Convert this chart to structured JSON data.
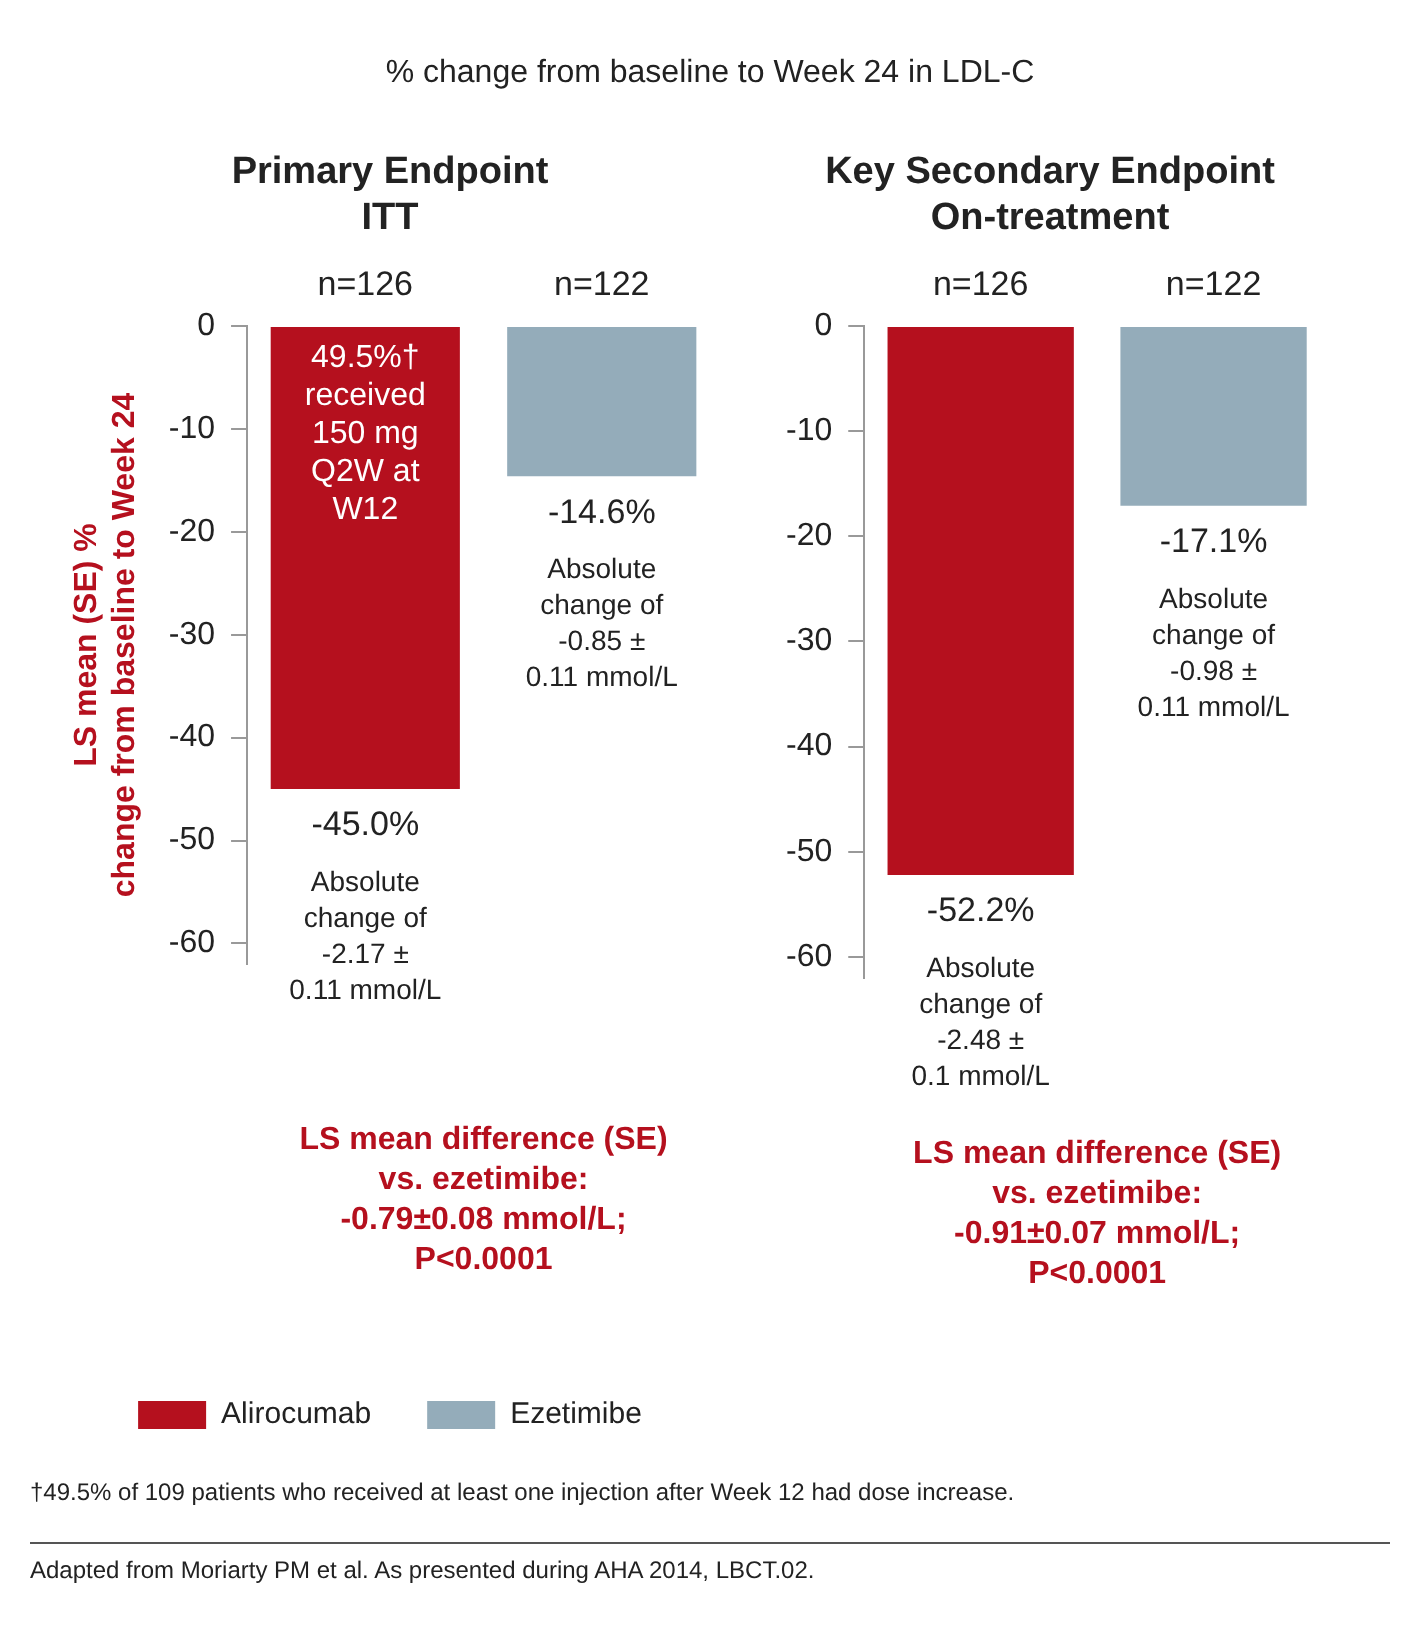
{
  "chart_data": [
    {
      "type": "other",
      "title": "% change from baseline to Week 24 in LDL-C"
    },
    {
      "type": "bar",
      "title": "Primary Endpoint\nITT",
      "ylabel": "LS mean (SE) %\nchange from baseline to Week 24",
      "categories": [
        "n=126",
        "n=122"
      ],
      "stacked": true,
      "series": [
        {
          "name": "Alirocumab",
          "color": "#b5101e",
          "values": [
            -45.0,
            null
          ],
          "value_labels": [
            "-45.0%",
            null
          ]
        },
        {
          "name": "Ezetimibe",
          "color": "#94acba",
          "values": [
            null,
            -14.6
          ],
          "value_labels": [
            null,
            "-14.6%"
          ]
        }
      ],
      "ylim": [
        -62,
        0
      ],
      "yticks": [
        0,
        -10,
        -20,
        -30,
        -40,
        -50,
        -60
      ],
      "grid": false,
      "legend": "bottom",
      "annotations": [
        "49.5%†\nreceived\n150 mg\nQ2W at\nW12",
        "Absolute\nchange of\n-2.17 ±\n0.11 mmol/L",
        "Absolute\nchange of\n-0.85 ±\n0.11 mmol/L",
        "LS mean difference (SE)\nvs. ezetimibe:\n-0.79±0.08 mmol/L;\nP<0.0001"
      ]
    },
    {
      "type": "bar",
      "title": "Key Secondary Endpoint\nOn-treatment",
      "categories": [
        "n=126",
        "n=122"
      ],
      "stacked": true,
      "series": [
        {
          "color": "#b5101e",
          "values": [
            -52.2,
            null
          ],
          "value_labels": [
            "-52.2%",
            null
          ]
        },
        {
          "color": "#94acba",
          "values": [
            null,
            -17.1
          ],
          "value_labels": [
            null,
            "-17.1%"
          ]
        }
      ],
      "ylim": [
        -62,
        0
      ],
      "yticks": [
        0,
        -10,
        -20,
        -30,
        -40,
        -50,
        -60
      ],
      "grid": false,
      "annotations": [
        "Absolute\nchange of\n-2.48 ±\n0.1 mmol/L",
        "Absolute\nchange of\n-0.98 ±\n0.11 mmol/L",
        "LS mean difference (SE)\nvs. ezetimibe:\n-0.91±0.07 mmol/L;\nP<0.0001"
      ]
    },
    {
      "type": "other",
      "annotations": [
        "†49.5% of 109 patients who received at least one injection after Week 12 had dose increase.",
        "Adapted from Moriarty PM et al. As presented during AHA 2014, LBCT.02."
      ]
    }
  ]
}
